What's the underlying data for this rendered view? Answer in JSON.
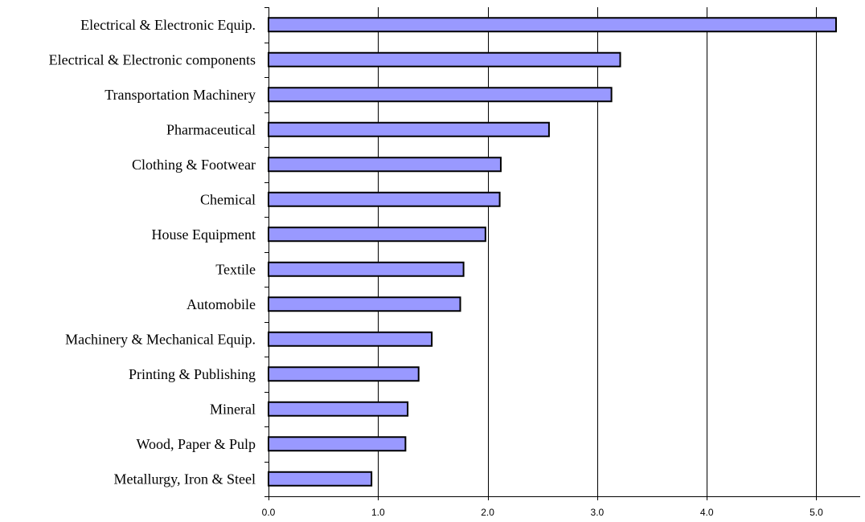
{
  "chart_data": {
    "type": "bar",
    "orientation": "horizontal",
    "categories": [
      "Electrical & Electronic Equip.",
      "Electrical & Electronic components",
      "Transportation Machinery",
      "Pharmaceutical",
      "Clothing & Footwear",
      "Chemical",
      "House Equipment",
      "Textile",
      "Automobile",
      "Machinery & Mechanical Equip.",
      "Printing & Publishing",
      "Mineral",
      "Wood, Paper & Pulp",
      "Metallurgy, Iron & Steel"
    ],
    "values": [
      5.18,
      3.21,
      3.13,
      2.56,
      2.12,
      2.11,
      1.98,
      1.78,
      1.75,
      1.49,
      1.37,
      1.27,
      1.25,
      0.94
    ],
    "xlim": [
      0,
      5.4
    ],
    "xticks": [
      0,
      1,
      2,
      3,
      4,
      5
    ],
    "xtick_labels": [
      "0.0",
      "1.0",
      "2.0",
      "3.0",
      "4.0",
      "5.0"
    ],
    "grid": "vertical",
    "legend": "none",
    "bar_color": "#9999ff",
    "bar_edge_color": "#000000"
  }
}
